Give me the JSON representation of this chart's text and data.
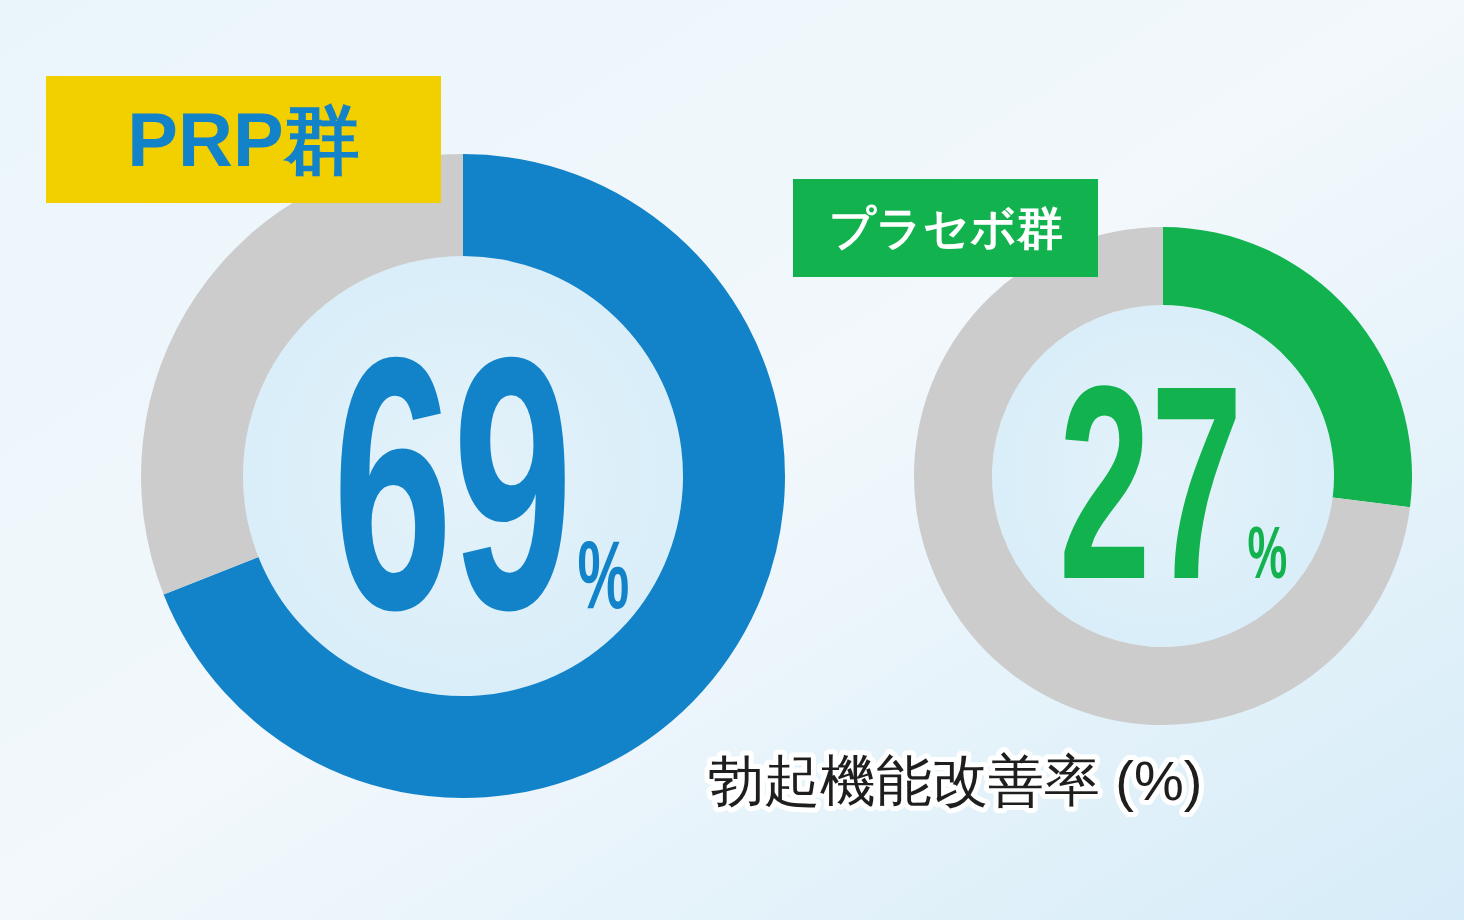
{
  "chart_data": [
    {
      "type": "donut",
      "title": "PRP群",
      "categories": [
        null,
        null
      ],
      "values": [
        69,
        31
      ],
      "colors": [
        "#1283c9",
        "#cccccc"
      ],
      "value_labels": [
        "69%",
        null
      ]
    },
    {
      "type": "donut",
      "title": "プラセボ群",
      "categories": [
        null,
        null
      ],
      "values": [
        27,
        73
      ],
      "colors": [
        "#12b24f",
        "#cccccc"
      ],
      "value_labels": [
        "27%",
        null
      ],
      "annotations": [
        "勃起機能改善率 (%)"
      ]
    }
  ]
}
